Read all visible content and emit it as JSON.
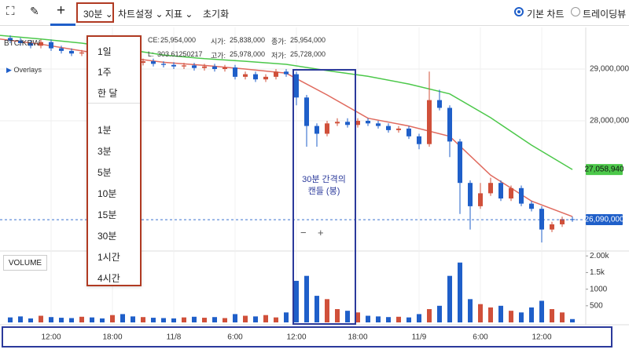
{
  "toolbar": {
    "interval": "30분",
    "chart_settings": "차트설정",
    "indicators": "지표",
    "reset": "초기화",
    "basic_chart": "기본 차트",
    "tradingview": "트레이딩뷰"
  },
  "dropdown": {
    "items": [
      "1일",
      "1주",
      "한 달",
      "1분",
      "3분",
      "5분",
      "10분",
      "15분",
      "30분",
      "1시간",
      "4시간"
    ]
  },
  "info": {
    "symbol": "BTC/KRW",
    "fields": [
      {
        "label": "CE:",
        "value": "25,954,000"
      },
      {
        "label": "시가:",
        "value": "25,838,000"
      },
      {
        "label": "종가:",
        "value": "25,954,000"
      },
      {
        "label": "L:",
        "value": "303.61250217"
      },
      {
        "label": "고가:",
        "value": "25,978,000"
      },
      {
        "label": "저가:",
        "value": "25,728,000"
      }
    ]
  },
  "overlays_label": "Overlays",
  "volume_label": "VOLUME",
  "zoom_controls": [
    "−",
    "+"
  ],
  "annotation": {
    "lines": [
      "30분 간격의",
      "캔들 (봉)"
    ]
  },
  "chart_data": {
    "type": "candlestick",
    "up_color": "#d0503a",
    "down_color": "#1f5fc9",
    "x": [
      1,
      2,
      3,
      4,
      5,
      6,
      7,
      8,
      9,
      10,
      11,
      12,
      13,
      14,
      15,
      16,
      17,
      18,
      19,
      20,
      21,
      22,
      23,
      24,
      25,
      26,
      27,
      28,
      29,
      30,
      31,
      32,
      33,
      34,
      35,
      36,
      37,
      38,
      39,
      40,
      41,
      42,
      43,
      44,
      45,
      46,
      47,
      48,
      49,
      50,
      51,
      52,
      53,
      54,
      55,
      56
    ],
    "open": [
      29600000,
      29550000,
      29500000,
      29450000,
      29520000,
      29400000,
      29350000,
      29300000,
      29320000,
      29250000,
      29200000,
      29220000,
      29150000,
      29120000,
      29150000,
      29100000,
      29080000,
      29050000,
      29070000,
      29020000,
      29050000,
      29000000,
      29030000,
      28850000,
      28900000,
      28800000,
      28850000,
      28950000,
      28900000,
      28450000,
      27900000,
      27750000,
      27950000,
      27980000,
      27920000,
      28000000,
      27950000,
      27900000,
      27820000,
      27850000,
      27700000,
      27550000,
      28400000,
      28250000,
      27600000,
      26800000,
      26350000,
      26600000,
      26800000,
      26500000,
      26700000,
      26400000,
      26300000,
      25900000,
      26000000,
      26100000
    ],
    "high": [
      29650000,
      29600000,
      29550000,
      29570000,
      29570000,
      29450000,
      29400000,
      29370000,
      29370000,
      29300000,
      29270000,
      29270000,
      29200000,
      29200000,
      29200000,
      29150000,
      29130000,
      29120000,
      29120000,
      29100000,
      29100000,
      29080000,
      29080000,
      28950000,
      28950000,
      28900000,
      29000000,
      29000000,
      28950000,
      28500000,
      27950000,
      28000000,
      28050000,
      28050000,
      28050000,
      28050000,
      28000000,
      27950000,
      27900000,
      27900000,
      27750000,
      28950000,
      28600000,
      28300000,
      27650000,
      26850000,
      26800000,
      26900000,
      26850000,
      26750000,
      26750000,
      26450000,
      26350000,
      26050000,
      26150000,
      26150000
    ],
    "low": [
      29500000,
      29450000,
      29400000,
      29400000,
      29350000,
      29300000,
      29250000,
      29250000,
      29200000,
      29150000,
      29150000,
      29100000,
      29070000,
      29070000,
      29050000,
      29030000,
      29000000,
      29000000,
      28970000,
      28970000,
      28950000,
      28950000,
      28800000,
      28800000,
      28750000,
      28750000,
      28800000,
      28850000,
      28300000,
      27500000,
      27500000,
      27700000,
      27900000,
      27870000,
      27870000,
      27900000,
      27850000,
      27770000,
      27770000,
      27650000,
      27450000,
      27500000,
      28200000,
      27300000,
      26200000,
      25900000,
      26300000,
      26550000,
      26450000,
      26450000,
      26350000,
      26250000,
      25650000,
      25850000,
      25950000,
      26050000
    ],
    "close": [
      29550000,
      29500000,
      29450000,
      29520000,
      29400000,
      29350000,
      29300000,
      29320000,
      29250000,
      29200000,
      29220000,
      29150000,
      29120000,
      29150000,
      29100000,
      29080000,
      29050000,
      29070000,
      29020000,
      29050000,
      29000000,
      29030000,
      28850000,
      28900000,
      28800000,
      28850000,
      28950000,
      28900000,
      28450000,
      27900000,
      27750000,
      27950000,
      27980000,
      27920000,
      28000000,
      27950000,
      27900000,
      27820000,
      27850000,
      27700000,
      27550000,
      28400000,
      28250000,
      27600000,
      26800000,
      26350000,
      26600000,
      26800000,
      26500000,
      26700000,
      26400000,
      26300000,
      25900000,
      26000000,
      26100000,
      26090000
    ],
    "volume": [
      150,
      180,
      120,
      200,
      160,
      140,
      130,
      170,
      150,
      120,
      220,
      250,
      180,
      160,
      140,
      130,
      120,
      150,
      170,
      140,
      160,
      130,
      250,
      200,
      180,
      220,
      150,
      300,
      1250,
      1400,
      800,
      700,
      400,
      350,
      300,
      200,
      180,
      160,
      170,
      150,
      250,
      400,
      500,
      1400,
      1800,
      700,
      550,
      450,
      500,
      350,
      300,
      450,
      650,
      400,
      300,
      100
    ],
    "overlay_x": [
      0,
      4,
      8,
      12,
      16,
      20,
      24,
      28,
      32,
      36,
      40,
      44,
      48,
      52,
      56
    ],
    "overlays": [
      {
        "color": "#4cc84a",
        "values": [
          29650000,
          29580000,
          29500000,
          29390000,
          29270000,
          29200000,
          29150000,
          29090000,
          28970000,
          28860000,
          28710000,
          28520000,
          28060000,
          27530000,
          27058940
        ]
      },
      {
        "color": "#e06a5e",
        "values": [
          29580000,
          29480000,
          29350000,
          29230000,
          29130000,
          29070000,
          29000000,
          28920000,
          28500000,
          28050000,
          27900000,
          27700000,
          26950000,
          26450000,
          26150000
        ]
      }
    ],
    "markers": [
      {
        "value": 27058940,
        "label": "27,058,940",
        "color": "#4cc84a",
        "text_color": "#111111",
        "dashed": false
      },
      {
        "value": 26090000,
        "label": "26,090,000",
        "color": "#1f5fc9",
        "text_color": "#ffffff",
        "dashed": true
      }
    ],
    "xlim": [
      0,
      57
    ],
    "xticks": [
      {
        "value": 5,
        "label": "12:00"
      },
      {
        "value": 11,
        "label": "18:00"
      },
      {
        "value": 17,
        "label": "11/8"
      },
      {
        "value": 23,
        "label": "6:00"
      },
      {
        "value": 29,
        "label": "12:00"
      },
      {
        "value": 35,
        "label": "18:00"
      },
      {
        "value": 41,
        "label": "11/9"
      },
      {
        "value": 47,
        "label": "6:00"
      },
      {
        "value": 53,
        "label": "12:00"
      }
    ],
    "ylim": [
      25515000,
      29803000
    ],
    "yticks": [
      {
        "value": 29000000,
        "label": "29,000,000"
      },
      {
        "value": 28000000,
        "label": "28,000,000"
      }
    ],
    "volume_ylim": [
      0,
      2100
    ],
    "volume_ticks": [
      500,
      1000,
      {
        "value": 1500,
        "label": "1.5k"
      },
      {
        "value": 2000,
        "label": "2.00k"
      }
    ],
    "grid": true
  }
}
